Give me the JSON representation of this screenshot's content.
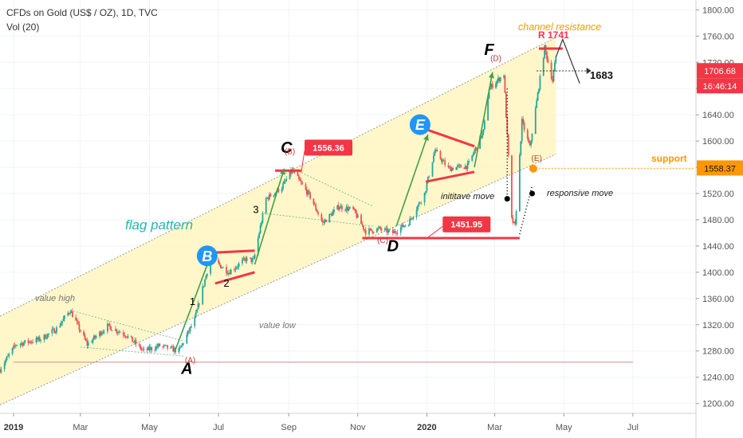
{
  "header": {
    "title": "CFDs on Gold (US$ / OZ), 1D, TVC",
    "indicator": "Vol (20)"
  },
  "chart_data": {
    "type": "candlestick",
    "y_range": [
      1185,
      1815
    ],
    "y_ticks": [
      1200,
      1240,
      1280,
      1320,
      1360,
      1400,
      1440,
      1480,
      1520,
      1560,
      1600,
      1640,
      1680,
      1720,
      1760,
      1800
    ],
    "y_tick_labels": [
      "1200.00",
      "1240.00",
      "1280.00",
      "1320.00",
      "1360.00",
      "1400.00",
      "1440.00",
      "1480.00",
      "1520.00",
      "1560.00",
      "1600.00",
      "1640.00",
      "1680.00",
      "1720.00",
      "1760.00",
      "1800.00"
    ],
    "x_range": [
      "2018-12-20",
      "2020-08-25"
    ],
    "x_ticks": [
      {
        "date": "2019-01-01",
        "label": "2019",
        "bold": true
      },
      {
        "date": "2019-03-01",
        "label": "Mar",
        "bold": false
      },
      {
        "date": "2019-05-01",
        "label": "May",
        "bold": false
      },
      {
        "date": "2019-07-01",
        "label": "Jul",
        "bold": false
      },
      {
        "date": "2019-09-01",
        "label": "Sep",
        "bold": false
      },
      {
        "date": "2019-11-01",
        "label": "Nov",
        "bold": false
      },
      {
        "date": "2020-01-01",
        "label": "2020",
        "bold": true
      },
      {
        "date": "2020-03-01",
        "label": "Mar",
        "bold": false
      },
      {
        "date": "2020-05-01",
        "label": "May",
        "bold": false
      },
      {
        "date": "2020-07-01",
        "label": "Jul",
        "bold": false
      }
    ],
    "price_path": [
      [
        "2018-12-20",
        1252
      ],
      [
        "2019-01-03",
        1290
      ],
      [
        "2019-01-25",
        1298
      ],
      [
        "2019-02-08",
        1314
      ],
      [
        "2019-02-20",
        1342
      ],
      [
        "2019-03-07",
        1290
      ],
      [
        "2019-03-25",
        1318
      ],
      [
        "2019-04-10",
        1305
      ],
      [
        "2019-04-26",
        1280
      ],
      [
        "2019-05-10",
        1288
      ],
      [
        "2019-05-27",
        1280
      ],
      [
        "2019-06-10",
        1328
      ],
      [
        "2019-06-24",
        1422
      ],
      [
        "2019-07-10",
        1400
      ],
      [
        "2019-07-25",
        1420
      ],
      [
        "2019-08-01",
        1418
      ],
      [
        "2019-08-12",
        1512
      ],
      [
        "2019-08-26",
        1530
      ],
      [
        "2019-09-04",
        1555
      ],
      [
        "2019-09-20",
        1515
      ],
      [
        "2019-10-01",
        1475
      ],
      [
        "2019-10-15",
        1500
      ],
      [
        "2019-10-28",
        1495
      ],
      [
        "2019-11-08",
        1462
      ],
      [
        "2019-11-20",
        1466
      ],
      [
        "2019-12-02",
        1460
      ],
      [
        "2019-12-16",
        1476
      ],
      [
        "2019-12-30",
        1520
      ],
      [
        "2020-01-08",
        1585
      ],
      [
        "2020-01-20",
        1558
      ],
      [
        "2020-02-06",
        1562
      ],
      [
        "2020-02-20",
        1615
      ],
      [
        "2020-02-25",
        1680
      ],
      [
        "2020-03-09",
        1702
      ],
      [
        "2020-03-16",
        1480
      ],
      [
        "2020-03-19",
        1470
      ],
      [
        "2020-03-25",
        1630
      ],
      [
        "2020-04-01",
        1590
      ],
      [
        "2020-04-14",
        1742
      ],
      [
        "2020-04-21",
        1692
      ],
      [
        "2020-04-24",
        1728
      ]
    ],
    "channel": {
      "upper": [
        [
          "2018-12-20",
          1333
        ],
        [
          "2020-04-24",
          1758
        ]
      ],
      "lower": [
        [
          "2018-12-20",
          1198
        ],
        [
          "2020-04-24",
          1580
        ]
      ]
    },
    "current_price": {
      "value": "1706.68",
      "time": "16:46:14"
    },
    "support": {
      "value": "1558.37",
      "label": "support"
    },
    "price_tags": [
      {
        "label": "1556.36",
        "date": "2019-09-15",
        "price": 1590
      },
      {
        "label": "1451.95",
        "date": "2020-01-15",
        "price": 1473
      }
    ],
    "wave_labels": [
      {
        "text": "A",
        "date": "2019-06-03",
        "price": 1245
      },
      {
        "text": "C",
        "date": "2019-08-30",
        "price": 1582
      },
      {
        "text": "D",
        "date": "2019-12-02",
        "price": 1432
      },
      {
        "text": "F",
        "date": "2020-02-25",
        "price": 1731
      }
    ],
    "wave_sub_labels": [
      {
        "text": "(A)",
        "date": "2019-06-06",
        "price": 1262
      },
      {
        "text": "(B)",
        "date": "2019-09-02",
        "price": 1580
      },
      {
        "text": "(C)",
        "date": "2019-11-23",
        "price": 1445
      },
      {
        "text": "(D)",
        "date": "2020-03-02",
        "price": 1722
      },
      {
        "text": "(E)",
        "date": "2020-04-07",
        "price": 1570
      }
    ],
    "wave_numbers": [
      {
        "text": "1",
        "date": "2019-06-08",
        "price": 1350
      },
      {
        "text": "2",
        "date": "2019-07-08",
        "price": 1378
      },
      {
        "text": "3",
        "date": "2019-08-03",
        "price": 1490
      }
    ],
    "circle_labels": [
      {
        "text": "B",
        "date": "2019-06-21",
        "price": 1425
      },
      {
        "text": "E",
        "date": "2019-12-26",
        "price": 1625
      }
    ],
    "annotations": {
      "flag_pattern": "flag pattern",
      "value_high": "value high",
      "value_low": "value low",
      "channel_resistance": "channel resistance",
      "resistance": "R 1741",
      "target": "1683",
      "initiative_move": "inititave move",
      "responsive_move": "responsive move"
    }
  }
}
